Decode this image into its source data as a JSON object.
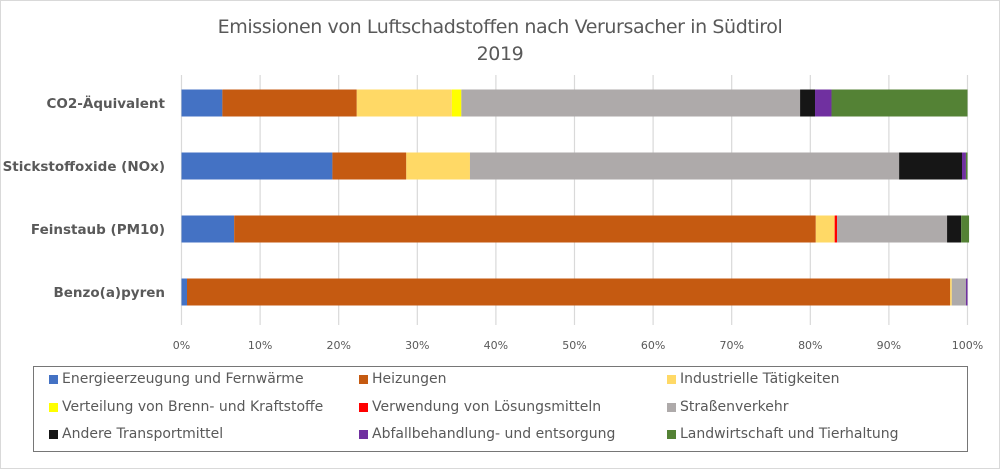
{
  "chart_data": {
    "type": "bar",
    "orientation": "horizontal",
    "stacked": "percent",
    "title": "Emissionen von Luftschadstoffen nach Verursacher in Südtirol",
    "subtitle": "2019",
    "categories": [
      "CO2-Äquivalent",
      "Stickstoffoxide (NOx)",
      "Feinstaub (PM10)",
      "Benzo(a)pyren"
    ],
    "xlabel": "",
    "ylabel": "",
    "xlim": [
      0,
      100
    ],
    "x_ticks": [
      "0%",
      "10%",
      "20%",
      "30%",
      "40%",
      "50%",
      "60%",
      "70%",
      "80%",
      "90%",
      "100%"
    ],
    "grid": true,
    "legend_position": "bottom",
    "series": [
      {
        "name": "Energieerzeugung und Fernwärme",
        "color": "#4472C4",
        "values": [
          5.2,
          19.2,
          6.7,
          0.7
        ]
      },
      {
        "name": "Heizungen",
        "color": "#C55A11",
        "values": [
          17.1,
          9.4,
          74.0,
          97.1
        ]
      },
      {
        "name": "Industrielle Tätigkeiten",
        "color": "#FFD966",
        "values": [
          12.1,
          8.1,
          2.4,
          0.2
        ]
      },
      {
        "name": "Verteilung von Brenn- und Kraftstoffe",
        "color": "#FFFF00",
        "values": [
          1.2,
          0.0,
          0.0,
          0.0
        ]
      },
      {
        "name": "Verwendung von Lösungsmitteln",
        "color": "#FF0000",
        "values": [
          0.0,
          0.0,
          0.3,
          0.0
        ]
      },
      {
        "name": "Straßenverkehr",
        "color": "#AEAAAA",
        "values": [
          43.1,
          54.6,
          14.0,
          1.8
        ]
      },
      {
        "name": "Andere Transportmittel",
        "color": "#161616",
        "values": [
          1.9,
          8.0,
          1.8,
          0.0
        ]
      },
      {
        "name": "Abfallbehandlung- und entsorgung",
        "color": "#7030A0",
        "values": [
          2.1,
          0.5,
          0.0,
          0.2
        ]
      },
      {
        "name": "Landwirtschaft und Tierhaltung",
        "color": "#548235",
        "values": [
          17.3,
          0.2,
          1.0,
          0.0
        ]
      }
    ]
  }
}
